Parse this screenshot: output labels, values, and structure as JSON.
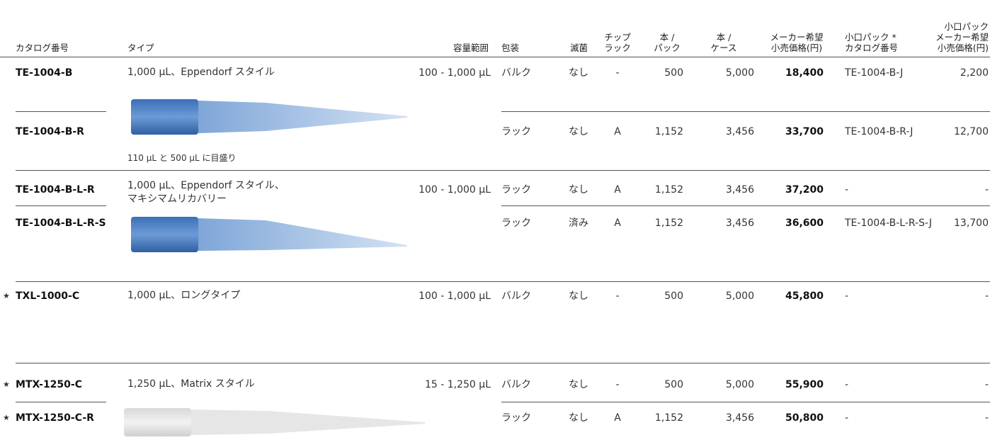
{
  "table": {
    "header": [
      [
        "カタログ番号"
      ],
      [
        "タイプ"
      ],
      [
        "容量範囲"
      ],
      [
        "包装"
      ],
      [
        "滅菌"
      ],
      [
        "チップ",
        "ラック"
      ],
      [
        "本 /",
        "パック"
      ],
      [
        "本 /",
        "ケース"
      ],
      [
        "メーカー希望",
        "小売価格(円)"
      ],
      [
        "小口パック *",
        "カタログ番号"
      ],
      [
        "小口パック",
        "メーカー希望",
        "小売価格(円)"
      ]
    ],
    "rows": [
      {
        "catalog": "TE-1004-B",
        "type": [
          "1,000 µL、Eppendorf スタイル"
        ],
        "range": "100 - 1,000 µL",
        "packaging": "バルク",
        "sterile": "なし",
        "rack": "-",
        "per_pack": "500",
        "per_case": "5,000",
        "price": "18,400",
        "small_catalog": "TE-1004-B-J",
        "small_price": "2,200"
      },
      {
        "catalog": "TE-1004-B-R",
        "packaging": "ラック",
        "sterile": "なし",
        "rack": "A",
        "per_pack": "1,152",
        "per_case": "3,456",
        "price": "33,700",
        "small_catalog": "TE-1004-B-R-J",
        "small_price": "12,700",
        "note": "110 µL と 500 µL に目盛り"
      },
      {
        "catalog": "TE-1004-B-L-R",
        "type": [
          "1,000 µL、Eppendorf スタイル、",
          "マキシマムリカバリー"
        ],
        "range": "100 - 1,000 µL",
        "packaging": "ラック",
        "sterile": "なし",
        "rack": "A",
        "per_pack": "1,152",
        "per_case": "3,456",
        "price": "37,200",
        "small_catalog": "-",
        "small_price": "-"
      },
      {
        "catalog": "TE-1004-B-L-R-S",
        "packaging": "ラック",
        "sterile": "済み",
        "rack": "A",
        "per_pack": "1,152",
        "per_case": "3,456",
        "price": "36,600",
        "small_catalog": "TE-1004-B-L-R-S-J",
        "small_price": "13,700"
      },
      {
        "star": "★",
        "catalog": "TXL-1000-C",
        "type": [
          "1,000 µL、ロングタイプ"
        ],
        "range": "100 - 1,000 µL",
        "packaging": "バルク",
        "sterile": "なし",
        "rack": "-",
        "per_pack": "500",
        "per_case": "5,000",
        "price": "45,800",
        "small_catalog": "-",
        "small_price": "-"
      },
      {
        "star": "★",
        "catalog": "MTX-1250-C",
        "type": [
          "1,250 µL、Matrix スタイル"
        ],
        "range": "15 - 1,250 µL",
        "packaging": "バルク",
        "sterile": "なし",
        "rack": "-",
        "per_pack": "500",
        "per_case": "5,000",
        "price": "55,900",
        "small_catalog": "-",
        "small_price": "-"
      },
      {
        "star": "★",
        "catalog": "MTX-1250-C-R",
        "packaging": "ラック",
        "sterile": "なし",
        "rack": "A",
        "per_pack": "1,152",
        "per_case": "3,456",
        "price": "50,800",
        "small_catalog": "-",
        "small_price": "-"
      }
    ]
  }
}
